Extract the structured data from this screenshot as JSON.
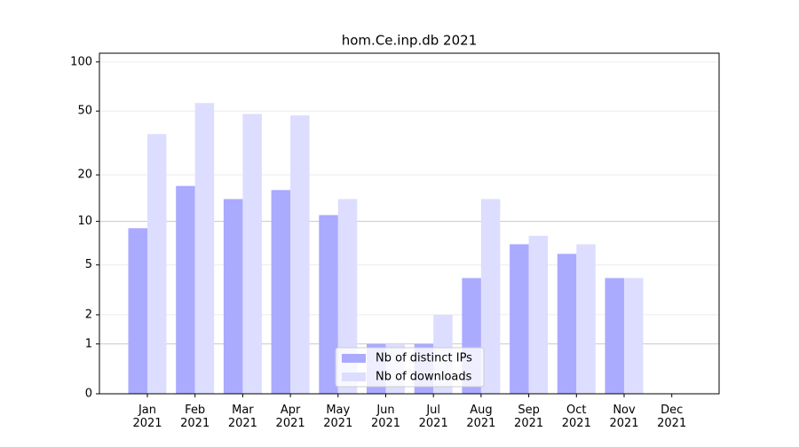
{
  "chart_data": {
    "type": "bar",
    "title": "hom.Ce.inp.db 2021",
    "categories": [
      "Jan\n2021",
      "Feb\n2021",
      "Mar\n2021",
      "Apr\n2021",
      "May\n2021",
      "Jun\n2021",
      "Jul\n2021",
      "Aug\n2021",
      "Sep\n2021",
      "Oct\n2021",
      "Nov\n2021",
      "Dec\n2021"
    ],
    "series": [
      {
        "name": "Nb of distinct IPs",
        "color": "#aaaaff",
        "values": [
          9,
          17,
          14,
          16,
          11,
          1,
          1,
          4,
          7,
          6,
          4,
          0
        ]
      },
      {
        "name": "Nb of downloads",
        "color": "#ddddff",
        "values": [
          36,
          56,
          48,
          47,
          14,
          1,
          2,
          14,
          8,
          7,
          4,
          0
        ]
      }
    ],
    "yscale": "log1p",
    "ylim": [
      0,
      113
    ],
    "yticks": [
      0,
      1,
      2,
      5,
      10,
      20,
      50,
      100
    ],
    "grid": true,
    "legend": "lower center"
  }
}
